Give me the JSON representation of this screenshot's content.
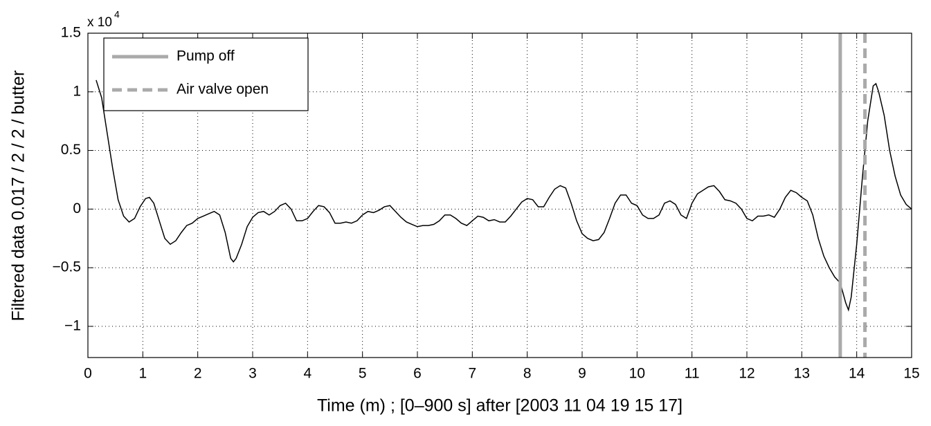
{
  "chart_data": {
    "type": "line",
    "xlabel": "Time (m) ; [0–900 s] after [2003 11 04 19 15 17]",
    "ylabel": "Filtered data  0.017 / 2 / 2 / butter",
    "y_multiplier": {
      "base": "x 10",
      "exponent": "4"
    },
    "xlim": [
      0,
      15
    ],
    "xticks": [
      0,
      1,
      2,
      3,
      4,
      5,
      6,
      7,
      8,
      9,
      10,
      11,
      12,
      13,
      14,
      15
    ],
    "ylim": [
      -1.266,
      1.5
    ],
    "yticks": [
      {
        "value": -1,
        "label": "−1"
      },
      {
        "value": -0.5,
        "label": "−0.5"
      },
      0,
      0.5,
      1,
      1.5
    ],
    "grid": true,
    "series": [
      {
        "color": "#000000",
        "x": [
          0.15,
          0.25,
          0.35,
          0.45,
          0.55,
          0.65,
          0.75,
          0.85,
          0.95,
          1.05,
          1.12,
          1.2,
          1.3,
          1.4,
          1.5,
          1.6,
          1.7,
          1.8,
          1.9,
          2.0,
          2.1,
          2.2,
          2.3,
          2.4,
          2.5,
          2.6,
          2.65,
          2.7,
          2.8,
          2.9,
          3.0,
          3.1,
          3.2,
          3.3,
          3.4,
          3.5,
          3.6,
          3.7,
          3.8,
          3.9,
          4.0,
          4.1,
          4.2,
          4.3,
          4.4,
          4.5,
          4.6,
          4.7,
          4.8,
          4.9,
          5.0,
          5.1,
          5.2,
          5.3,
          5.4,
          5.5,
          5.6,
          5.7,
          5.8,
          5.9,
          6.0,
          6.1,
          6.2,
          6.3,
          6.4,
          6.5,
          6.6,
          6.7,
          6.8,
          6.9,
          7.0,
          7.1,
          7.2,
          7.3,
          7.4,
          7.5,
          7.6,
          7.7,
          7.8,
          7.9,
          8.0,
          8.1,
          8.2,
          8.3,
          8.4,
          8.5,
          8.6,
          8.7,
          8.8,
          8.9,
          9.0,
          9.1,
          9.2,
          9.3,
          9.4,
          9.5,
          9.6,
          9.7,
          9.8,
          9.9,
          10.0,
          10.1,
          10.2,
          10.3,
          10.4,
          10.5,
          10.6,
          10.7,
          10.8,
          10.9,
          11.0,
          11.1,
          11.2,
          11.3,
          11.4,
          11.5,
          11.6,
          11.7,
          11.8,
          11.9,
          12.0,
          12.1,
          12.2,
          12.3,
          12.4,
          12.5,
          12.6,
          12.7,
          12.8,
          12.9,
          13.0,
          13.1,
          13.2,
          13.3,
          13.4,
          13.5,
          13.6,
          13.7,
          13.8,
          13.85,
          13.9,
          14.0,
          14.1,
          14.2,
          14.3,
          14.35,
          14.4,
          14.5,
          14.6,
          14.7,
          14.8,
          14.9,
          15.0
        ],
        "values": [
          1.1,
          0.95,
          0.65,
          0.35,
          0.08,
          -0.06,
          -0.11,
          -0.08,
          0.02,
          0.09,
          0.1,
          0.05,
          -0.1,
          -0.25,
          -0.3,
          -0.27,
          -0.2,
          -0.14,
          -0.12,
          -0.08,
          -0.06,
          -0.04,
          -0.02,
          -0.05,
          -0.2,
          -0.42,
          -0.45,
          -0.42,
          -0.3,
          -0.15,
          -0.07,
          -0.03,
          -0.02,
          -0.05,
          -0.02,
          0.03,
          0.05,
          0.0,
          -0.1,
          -0.1,
          -0.08,
          -0.02,
          0.03,
          0.02,
          -0.03,
          -0.12,
          -0.12,
          -0.11,
          -0.12,
          -0.1,
          -0.05,
          -0.02,
          -0.03,
          -0.01,
          0.02,
          0.03,
          -0.02,
          -0.07,
          -0.11,
          -0.13,
          -0.15,
          -0.14,
          -0.14,
          -0.13,
          -0.1,
          -0.05,
          -0.05,
          -0.08,
          -0.12,
          -0.14,
          -0.1,
          -0.06,
          -0.07,
          -0.1,
          -0.09,
          -0.11,
          -0.11,
          -0.06,
          0.0,
          0.06,
          0.09,
          0.08,
          0.02,
          0.02,
          0.1,
          0.17,
          0.2,
          0.18,
          0.05,
          -0.1,
          -0.21,
          -0.25,
          -0.27,
          -0.26,
          -0.2,
          -0.08,
          0.05,
          0.12,
          0.12,
          0.05,
          0.03,
          -0.05,
          -0.08,
          -0.08,
          -0.05,
          0.05,
          0.07,
          0.04,
          -0.05,
          -0.08,
          0.05,
          0.13,
          0.16,
          0.19,
          0.2,
          0.15,
          0.08,
          0.07,
          0.05,
          0.0,
          -0.08,
          -0.1,
          -0.06,
          -0.06,
          -0.05,
          -0.07,
          0.0,
          0.1,
          0.16,
          0.14,
          0.1,
          0.07,
          -0.05,
          -0.25,
          -0.4,
          -0.5,
          -0.58,
          -0.63,
          -0.8,
          -0.86,
          -0.75,
          -0.3,
          0.25,
          0.75,
          1.05,
          1.07,
          1.0,
          0.8,
          0.5,
          0.28,
          0.12,
          0.04,
          0.0
        ]
      }
    ],
    "vlines": [
      {
        "name": "Pump off",
        "x": 13.7,
        "color": "#aaaaaa",
        "dashed": false
      },
      {
        "name": "Air valve open",
        "x": 14.15,
        "color": "#aaaaaa",
        "dashed": true
      }
    ],
    "legend": "upper left"
  }
}
